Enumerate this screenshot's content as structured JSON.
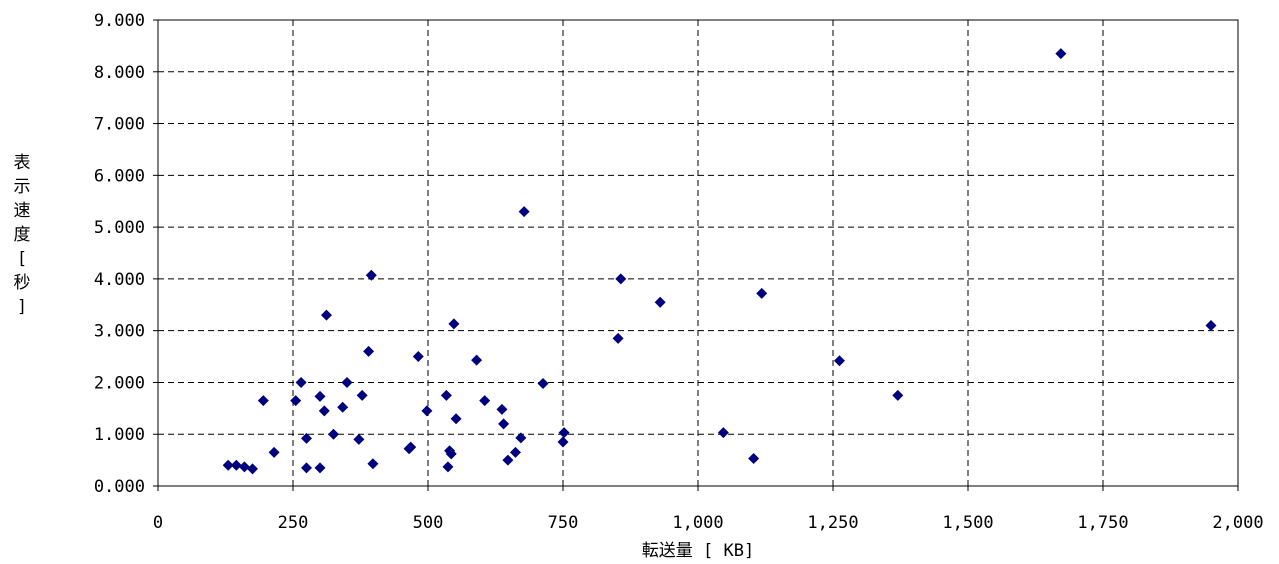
{
  "chart_data": {
    "type": "scatter",
    "title": "",
    "xlabel": "転送量 [ KB]",
    "ylabel": "表示速度[ 秒]",
    "xlim": [
      0,
      2000
    ],
    "ylim": [
      0,
      9
    ],
    "grid": true,
    "x_ticks": [
      "0",
      "250",
      "500",
      "750",
      "1,000",
      "1,250",
      "1,500",
      "1,750",
      "2,000"
    ],
    "y_ticks": [
      "0.000",
      "1.000",
      "2.000",
      "3.000",
      "4.000",
      "5.000",
      "6.000",
      "7.000",
      "8.000",
      "9.000"
    ],
    "marker_color": "#00007f",
    "points": [
      [
        130,
        0.4
      ],
      [
        145,
        0.4
      ],
      [
        160,
        0.37
      ],
      [
        175,
        0.33
      ],
      [
        195,
        1.65
      ],
      [
        215,
        0.65
      ],
      [
        255,
        1.65
      ],
      [
        265,
        2.0
      ],
      [
        275,
        0.35
      ],
      [
        275,
        0.92
      ],
      [
        300,
        1.73
      ],
      [
        300,
        0.35
      ],
      [
        308,
        1.45
      ],
      [
        312,
        3.3
      ],
      [
        325,
        1.0
      ],
      [
        342,
        1.52
      ],
      [
        350,
        2.0
      ],
      [
        372,
        0.9
      ],
      [
        378,
        1.75
      ],
      [
        390,
        2.6
      ],
      [
        395,
        4.07
      ],
      [
        398,
        0.43
      ],
      [
        465,
        0.72
      ],
      [
        468,
        0.75
      ],
      [
        482,
        2.5
      ],
      [
        498,
        1.45
      ],
      [
        534,
        1.75
      ],
      [
        537,
        0.37
      ],
      [
        540,
        0.68
      ],
      [
        543,
        0.62
      ],
      [
        548,
        3.13
      ],
      [
        552,
        1.3
      ],
      [
        590,
        2.43
      ],
      [
        605,
        1.65
      ],
      [
        637,
        1.48
      ],
      [
        640,
        1.2
      ],
      [
        648,
        0.5
      ],
      [
        662,
        0.65
      ],
      [
        672,
        0.93
      ],
      [
        678,
        5.3
      ],
      [
        713,
        1.98
      ],
      [
        750,
        0.85
      ],
      [
        752,
        1.03
      ],
      [
        852,
        2.85
      ],
      [
        857,
        4.0
      ],
      [
        930,
        3.55
      ],
      [
        1047,
        1.03
      ],
      [
        1103,
        0.53
      ],
      [
        1118,
        3.72
      ],
      [
        1262,
        2.42
      ],
      [
        1370,
        1.75
      ],
      [
        1672,
        8.35
      ],
      [
        1950,
        3.1
      ]
    ]
  }
}
